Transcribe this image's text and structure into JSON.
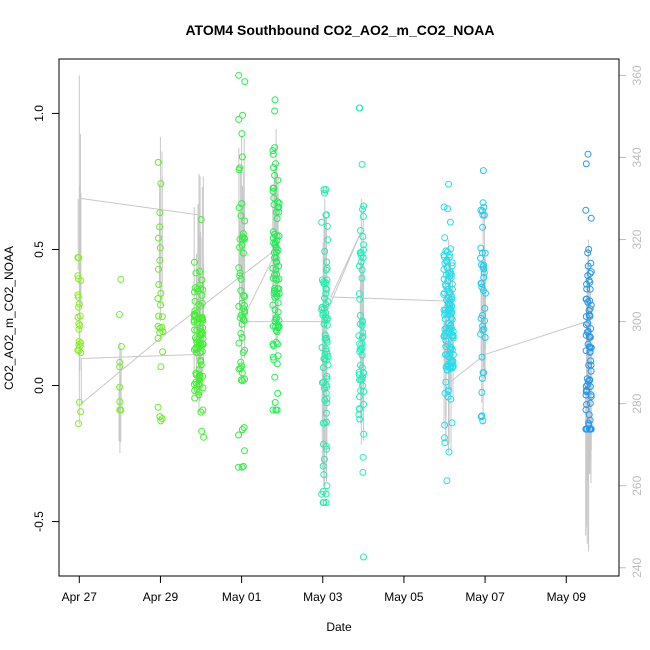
{
  "chart_data": {
    "type": "scatter",
    "title": "ATOM4 Southbound CO2_AO2_m_CO2_NOAA",
    "xlabel": "Date",
    "ylabel": "CO2_AO2_m_CO2_NOAA",
    "x_ticks": [
      "Apr 27",
      "Apr 29",
      "May 01",
      "May 03",
      "May 05",
      "May 07",
      "May 09"
    ],
    "x_tick_days": [
      0,
      2,
      4,
      6,
      8,
      10,
      12
    ],
    "x_range_days": [
      -0.5,
      13.3
    ],
    "y_ticks": [
      -0.5,
      0.0,
      0.5,
      1.0
    ],
    "y_tick_labels": [
      "-0.5",
      "0.0",
      "0.5",
      "1.0"
    ],
    "ylim": [
      -0.7,
      1.2
    ],
    "y2_ticks": [
      240,
      260,
      280,
      300,
      320,
      340,
      360
    ],
    "y2_tick_labels": [
      "240",
      "260",
      "280",
      "300",
      "320",
      "340",
      "360"
    ],
    "y2lim": [
      238,
      364
    ],
    "secondary_series_name": "latitude (grey line)",
    "point_color_scale": [
      "#7CFC00",
      "#00FF40",
      "#00FFC0",
      "#00E5FF",
      "#1E90FF"
    ],
    "clusters": [
      {
        "day": 0.0,
        "spread": 0.04,
        "n": 24,
        "mean": 0.2,
        "sd": 0.14,
        "min": -0.14,
        "max": 0.47,
        "color": "#88ee22",
        "lat_min": 275,
        "lat_max": 360
      },
      {
        "day": 1.0,
        "spread": 0.04,
        "n": 9,
        "mean": 0.14,
        "sd": 0.16,
        "min": -0.09,
        "max": 0.39,
        "color": "#77ee33",
        "lat_min": 268,
        "lat_max": 295
      },
      {
        "day": 2.0,
        "spread": 0.06,
        "n": 26,
        "mean": 0.27,
        "sd": 0.25,
        "min": -0.13,
        "max": 0.82,
        "color": "#66ee22",
        "lat_min": 300,
        "lat_max": 345
      },
      {
        "day": 2.95,
        "spread": 0.12,
        "n": 90,
        "mean": 0.18,
        "sd": 0.16,
        "min": -0.19,
        "max": 0.61,
        "color": "#44ee33",
        "lat_min": 278,
        "lat_max": 336
      },
      {
        "day": 4.0,
        "spread": 0.08,
        "n": 60,
        "mean": 0.3,
        "sd": 0.3,
        "min": -0.3,
        "max": 1.14,
        "color": "#33ee44",
        "lat_min": 285,
        "lat_max": 345
      },
      {
        "day": 4.85,
        "spread": 0.08,
        "n": 90,
        "mean": 0.45,
        "sd": 0.24,
        "min": -0.09,
        "max": 1.05,
        "color": "#22ee55",
        "lat_min": 292,
        "lat_max": 347
      },
      {
        "day": 6.05,
        "spread": 0.08,
        "n": 80,
        "mean": 0.1,
        "sd": 0.27,
        "min": -0.43,
        "max": 0.72,
        "color": "#22eeaa",
        "lat_min": 260,
        "lat_max": 330
      },
      {
        "day": 6.95,
        "spread": 0.06,
        "n": 60,
        "mean": 0.18,
        "sd": 0.3,
        "min": -0.63,
        "max": 1.02,
        "color": "#22eebb",
        "lat_min": 270,
        "lat_max": 330
      },
      {
        "day": 9.1,
        "spread": 0.12,
        "n": 120,
        "mean": 0.24,
        "sd": 0.17,
        "min": -0.35,
        "max": 0.74,
        "color": "#22ddee",
        "lat_min": 268,
        "lat_max": 320
      },
      {
        "day": 9.95,
        "spread": 0.06,
        "n": 40,
        "mean": 0.34,
        "sd": 0.22,
        "min": -0.13,
        "max": 0.79,
        "color": "#22ccee",
        "lat_min": 275,
        "lat_max": 328
      },
      {
        "day": 12.55,
        "spread": 0.07,
        "n": 75,
        "mean": 0.12,
        "sd": 0.22,
        "min": -0.16,
        "max": 0.85,
        "color": "#2299ee",
        "lat_min": 244,
        "lat_max": 320
      }
    ],
    "transect_line": [
      [
        0.05,
        330
      ],
      [
        2.95,
        326
      ],
      [
        2.95,
        292
      ],
      [
        0.05,
        291
      ],
      [
        0.05,
        280
      ],
      [
        2.0,
        296
      ],
      [
        4.9,
        318
      ],
      [
        4.0,
        300
      ],
      [
        6.0,
        300
      ],
      [
        6.95,
        322
      ],
      [
        6.2,
        306
      ],
      [
        9.1,
        305
      ],
      [
        9.1,
        285
      ],
      [
        10.0,
        292
      ],
      [
        12.5,
        300
      ]
    ]
  }
}
